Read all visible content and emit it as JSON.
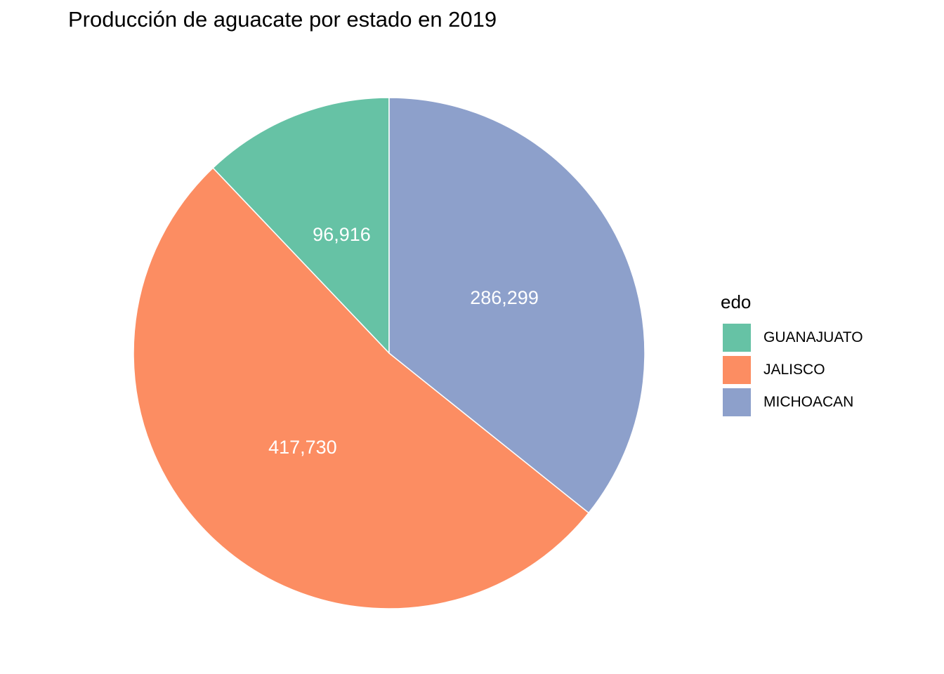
{
  "chart_data": {
    "type": "pie",
    "title": "Producción de aguacate por estado en 2019",
    "legend_title": "edo",
    "legend_position": "right",
    "label_format": "thousands-comma",
    "slices": [
      {
        "name": "GUANAJUATO",
        "value": 96916,
        "label": "96,916",
        "color": "#66c2a5"
      },
      {
        "name": "JALISCO",
        "value": 417730,
        "label": "417,730",
        "color": "#fc8d62"
      },
      {
        "name": "MICHOACAN",
        "value": 286299,
        "label": "286,299",
        "color": "#8da0cb"
      }
    ],
    "slice_border_color": "#ffffff"
  }
}
